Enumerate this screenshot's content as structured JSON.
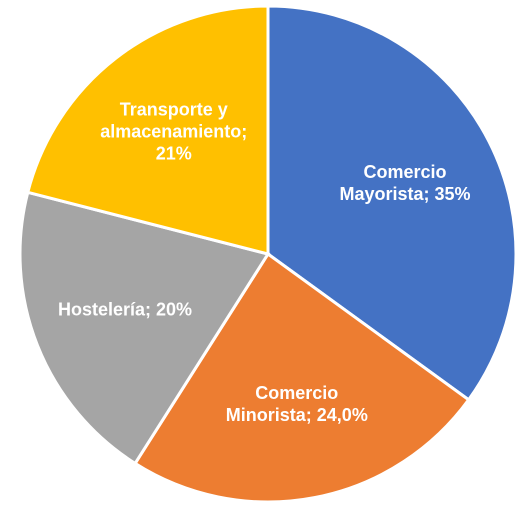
{
  "chart_data": {
    "type": "pie",
    "values": [
      35,
      24.0,
      20,
      21
    ],
    "value_labels": [
      [
        "Comercio",
        "Mayorista; 35%"
      ],
      [
        "Comercio",
        "Minorista; 24,0%"
      ],
      [
        "Hostelería; 20%"
      ],
      [
        "Transporte y",
        "almacenamiento;",
        "21%"
      ]
    ],
    "colors": [
      "#4472c4",
      "#ed7d31",
      "#a5a5a5",
      "#ffc000"
    ]
  }
}
